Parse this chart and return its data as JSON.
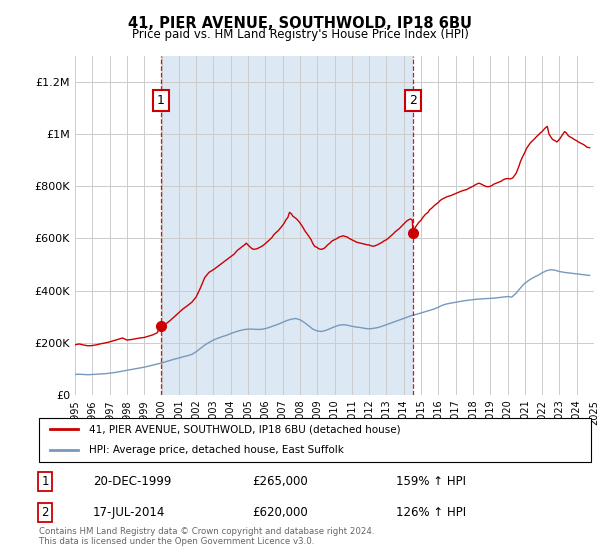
{
  "title": "41, PIER AVENUE, SOUTHWOLD, IP18 6BU",
  "subtitle": "Price paid vs. HM Land Registry's House Price Index (HPI)",
  "plot_bg_color": "#dce9f5",
  "red_line_color": "#cc0000",
  "blue_line_color": "#7799bb",
  "marker1_x": 1999.97,
  "marker1_y": 265000,
  "marker2_x": 2014.54,
  "marker2_y": 620000,
  "ylim": [
    0,
    1300000
  ],
  "yticks": [
    0,
    200000,
    400000,
    600000,
    800000,
    1000000,
    1200000
  ],
  "ytick_labels": [
    "£0",
    "£200K",
    "£400K",
    "£600K",
    "£800K",
    "£1M",
    "£1.2M"
  ],
  "xmin": 1995,
  "xmax": 2025,
  "legend_line1": "41, PIER AVENUE, SOUTHWOLD, IP18 6BU (detached house)",
  "legend_line2": "HPI: Average price, detached house, East Suffolk",
  "table_row1": [
    "1",
    "20-DEC-1999",
    "£265,000",
    "159% ↑ HPI"
  ],
  "table_row2": [
    "2",
    "17-JUL-2014",
    "£620,000",
    "126% ↑ HPI"
  ],
  "footer": "Contains HM Land Registry data © Crown copyright and database right 2024.\nThis data is licensed under the Open Government Licence v3.0.",
  "red_hpi_data": [
    [
      1995.0,
      192000
    ],
    [
      1995.25,
      195000
    ],
    [
      1995.5,
      191000
    ],
    [
      1995.75,
      188000
    ],
    [
      1996.0,
      189000
    ],
    [
      1996.25,
      192000
    ],
    [
      1996.5,
      196000
    ],
    [
      1996.75,
      199000
    ],
    [
      1997.0,
      203000
    ],
    [
      1997.25,
      208000
    ],
    [
      1997.5,
      213000
    ],
    [
      1997.75,
      218000
    ],
    [
      1998.0,
      210000
    ],
    [
      1998.25,
      212000
    ],
    [
      1998.5,
      215000
    ],
    [
      1998.75,
      218000
    ],
    [
      1999.0,
      220000
    ],
    [
      1999.25,
      225000
    ],
    [
      1999.5,
      230000
    ],
    [
      1999.75,
      238000
    ],
    [
      1999.97,
      265000
    ],
    [
      2000.1,
      268000
    ],
    [
      2000.25,
      272000
    ],
    [
      2000.5,
      285000
    ],
    [
      2000.75,
      300000
    ],
    [
      2001.0,
      315000
    ],
    [
      2001.25,
      330000
    ],
    [
      2001.5,
      342000
    ],
    [
      2001.75,
      355000
    ],
    [
      2002.0,
      375000
    ],
    [
      2002.25,
      410000
    ],
    [
      2002.5,
      450000
    ],
    [
      2002.75,
      470000
    ],
    [
      2003.0,
      480000
    ],
    [
      2003.1,
      485000
    ],
    [
      2003.25,
      492000
    ],
    [
      2003.35,
      498000
    ],
    [
      2003.5,
      505000
    ],
    [
      2003.6,
      510000
    ],
    [
      2003.75,
      518000
    ],
    [
      2003.85,
      523000
    ],
    [
      2004.0,
      530000
    ],
    [
      2004.1,
      535000
    ],
    [
      2004.2,
      540000
    ],
    [
      2004.3,
      548000
    ],
    [
      2004.4,
      555000
    ],
    [
      2004.5,
      560000
    ],
    [
      2004.6,
      565000
    ],
    [
      2004.75,
      572000
    ],
    [
      2004.85,
      578000
    ],
    [
      2004.9,
      582000
    ],
    [
      2005.0,
      575000
    ],
    [
      2005.15,
      565000
    ],
    [
      2005.3,
      558000
    ],
    [
      2005.5,
      560000
    ],
    [
      2005.6,
      563000
    ],
    [
      2005.75,
      568000
    ],
    [
      2005.85,
      572000
    ],
    [
      2006.0,
      580000
    ],
    [
      2006.1,
      586000
    ],
    [
      2006.25,
      595000
    ],
    [
      2006.4,
      605000
    ],
    [
      2006.5,
      615000
    ],
    [
      2006.65,
      624000
    ],
    [
      2006.75,
      630000
    ],
    [
      2006.85,
      638000
    ],
    [
      2007.0,
      650000
    ],
    [
      2007.1,
      660000
    ],
    [
      2007.2,
      672000
    ],
    [
      2007.3,
      680000
    ],
    [
      2007.4,
      700000
    ],
    [
      2007.5,
      695000
    ],
    [
      2007.6,
      685000
    ],
    [
      2007.75,
      678000
    ],
    [
      2007.85,
      672000
    ],
    [
      2008.0,
      660000
    ],
    [
      2008.15,
      645000
    ],
    [
      2008.3,
      628000
    ],
    [
      2008.5,
      610000
    ],
    [
      2008.65,
      595000
    ],
    [
      2008.75,
      580000
    ],
    [
      2008.85,
      570000
    ],
    [
      2009.0,
      565000
    ],
    [
      2009.1,
      560000
    ],
    [
      2009.25,
      558000
    ],
    [
      2009.4,
      562000
    ],
    [
      2009.5,
      568000
    ],
    [
      2009.6,
      575000
    ],
    [
      2009.75,
      583000
    ],
    [
      2009.85,
      590000
    ],
    [
      2010.0,
      595000
    ],
    [
      2010.15,
      600000
    ],
    [
      2010.25,
      605000
    ],
    [
      2010.4,
      608000
    ],
    [
      2010.5,
      610000
    ],
    [
      2010.6,
      608000
    ],
    [
      2010.75,
      605000
    ],
    [
      2010.85,
      600000
    ],
    [
      2011.0,
      595000
    ],
    [
      2011.15,
      590000
    ],
    [
      2011.3,
      585000
    ],
    [
      2011.5,
      582000
    ],
    [
      2011.65,
      580000
    ],
    [
      2011.75,
      578000
    ],
    [
      2011.85,
      576000
    ],
    [
      2012.0,
      575000
    ],
    [
      2012.1,
      572000
    ],
    [
      2012.25,
      570000
    ],
    [
      2012.35,
      572000
    ],
    [
      2012.5,
      576000
    ],
    [
      2012.6,
      580000
    ],
    [
      2012.75,
      585000
    ],
    [
      2012.85,
      590000
    ],
    [
      2013.0,
      595000
    ],
    [
      2013.1,
      600000
    ],
    [
      2013.2,
      606000
    ],
    [
      2013.3,
      612000
    ],
    [
      2013.4,
      618000
    ],
    [
      2013.5,
      625000
    ],
    [
      2013.6,
      630000
    ],
    [
      2013.75,
      638000
    ],
    [
      2013.85,
      645000
    ],
    [
      2014.0,
      655000
    ],
    [
      2014.1,
      662000
    ],
    [
      2014.2,
      668000
    ],
    [
      2014.3,
      672000
    ],
    [
      2014.4,
      675000
    ],
    [
      2014.5,
      670000
    ],
    [
      2014.54,
      620000
    ],
    [
      2014.6,
      635000
    ],
    [
      2014.75,
      650000
    ],
    [
      2014.85,
      660000
    ],
    [
      2015.0,
      670000
    ],
    [
      2015.1,
      680000
    ],
    [
      2015.25,
      692000
    ],
    [
      2015.4,
      700000
    ],
    [
      2015.5,
      710000
    ],
    [
      2015.65,
      718000
    ],
    [
      2015.75,
      725000
    ],
    [
      2015.85,
      730000
    ],
    [
      2016.0,
      738000
    ],
    [
      2016.1,
      745000
    ],
    [
      2016.2,
      750000
    ],
    [
      2016.35,
      755000
    ],
    [
      2016.5,
      760000
    ],
    [
      2016.6,
      762000
    ],
    [
      2016.75,
      765000
    ],
    [
      2016.85,
      768000
    ],
    [
      2017.0,
      772000
    ],
    [
      2017.1,
      775000
    ],
    [
      2017.2,
      778000
    ],
    [
      2017.35,
      782000
    ],
    [
      2017.5,
      785000
    ],
    [
      2017.65,
      788000
    ],
    [
      2017.75,
      792000
    ],
    [
      2017.85,
      795000
    ],
    [
      2018.0,
      800000
    ],
    [
      2018.1,
      804000
    ],
    [
      2018.2,
      808000
    ],
    [
      2018.35,
      812000
    ],
    [
      2018.5,
      808000
    ],
    [
      2018.6,
      804000
    ],
    [
      2018.75,
      800000
    ],
    [
      2018.85,
      798000
    ],
    [
      2019.0,
      800000
    ],
    [
      2019.1,
      803000
    ],
    [
      2019.2,
      808000
    ],
    [
      2019.35,
      812000
    ],
    [
      2019.5,
      816000
    ],
    [
      2019.65,
      820000
    ],
    [
      2019.75,
      825000
    ],
    [
      2019.85,
      828000
    ],
    [
      2020.0,
      830000
    ],
    [
      2020.15,
      828000
    ],
    [
      2020.3,
      832000
    ],
    [
      2020.5,
      850000
    ],
    [
      2020.65,
      875000
    ],
    [
      2020.75,
      895000
    ],
    [
      2020.85,
      910000
    ],
    [
      2021.0,
      930000
    ],
    [
      2021.1,
      945000
    ],
    [
      2021.2,
      955000
    ],
    [
      2021.3,
      965000
    ],
    [
      2021.4,
      972000
    ],
    [
      2021.5,
      978000
    ],
    [
      2021.6,
      985000
    ],
    [
      2021.7,
      992000
    ],
    [
      2021.8,
      998000
    ],
    [
      2021.9,
      1005000
    ],
    [
      2022.0,
      1010000
    ],
    [
      2022.1,
      1018000
    ],
    [
      2022.2,
      1025000
    ],
    [
      2022.3,
      1030000
    ],
    [
      2022.4,
      1000000
    ],
    [
      2022.5,
      990000
    ],
    [
      2022.6,
      980000
    ],
    [
      2022.75,
      975000
    ],
    [
      2022.85,
      970000
    ],
    [
      2023.0,
      980000
    ],
    [
      2023.1,
      990000
    ],
    [
      2023.2,
      1000000
    ],
    [
      2023.3,
      1010000
    ],
    [
      2023.4,
      1005000
    ],
    [
      2023.5,
      995000
    ],
    [
      2023.6,
      990000
    ],
    [
      2023.75,
      985000
    ],
    [
      2023.85,
      980000
    ],
    [
      2024.0,
      975000
    ],
    [
      2024.1,
      970000
    ],
    [
      2024.25,
      965000
    ],
    [
      2024.4,
      960000
    ],
    [
      2024.5,
      955000
    ],
    [
      2024.6,
      950000
    ],
    [
      2024.75,
      948000
    ]
  ],
  "blue_hpi_data": [
    [
      1995.0,
      78000
    ],
    [
      1995.25,
      79000
    ],
    [
      1995.5,
      78000
    ],
    [
      1995.75,
      77000
    ],
    [
      1996.0,
      78000
    ],
    [
      1996.25,
      79000
    ],
    [
      1996.5,
      80000
    ],
    [
      1996.75,
      81000
    ],
    [
      1997.0,
      83000
    ],
    [
      1997.25,
      85000
    ],
    [
      1997.5,
      88000
    ],
    [
      1997.75,
      91000
    ],
    [
      1998.0,
      94000
    ],
    [
      1998.25,
      97000
    ],
    [
      1998.5,
      100000
    ],
    [
      1998.75,
      103000
    ],
    [
      1999.0,
      106000
    ],
    [
      1999.25,
      110000
    ],
    [
      1999.5,
      114000
    ],
    [
      1999.75,
      118000
    ],
    [
      2000.0,
      122000
    ],
    [
      2000.25,
      127000
    ],
    [
      2000.5,
      132000
    ],
    [
      2000.75,
      137000
    ],
    [
      2001.0,
      141000
    ],
    [
      2001.25,
      146000
    ],
    [
      2001.5,
      150000
    ],
    [
      2001.75,
      155000
    ],
    [
      2002.0,
      165000
    ],
    [
      2002.25,
      178000
    ],
    [
      2002.5,
      191000
    ],
    [
      2002.75,
      201000
    ],
    [
      2003.0,
      210000
    ],
    [
      2003.25,
      217000
    ],
    [
      2003.5,
      223000
    ],
    [
      2003.75,
      228000
    ],
    [
      2004.0,
      235000
    ],
    [
      2004.25,
      241000
    ],
    [
      2004.5,
      246000
    ],
    [
      2004.75,
      250000
    ],
    [
      2005.0,
      252000
    ],
    [
      2005.25,
      252000
    ],
    [
      2005.5,
      251000
    ],
    [
      2005.75,
      251000
    ],
    [
      2006.0,
      254000
    ],
    [
      2006.25,
      259000
    ],
    [
      2006.5,
      265000
    ],
    [
      2006.75,
      271000
    ],
    [
      2007.0,
      278000
    ],
    [
      2007.25,
      285000
    ],
    [
      2007.5,
      290000
    ],
    [
      2007.75,
      293000
    ],
    [
      2008.0,
      288000
    ],
    [
      2008.25,
      278000
    ],
    [
      2008.5,
      265000
    ],
    [
      2008.75,
      252000
    ],
    [
      2009.0,
      245000
    ],
    [
      2009.25,
      243000
    ],
    [
      2009.5,
      247000
    ],
    [
      2009.75,
      254000
    ],
    [
      2010.0,
      261000
    ],
    [
      2010.25,
      267000
    ],
    [
      2010.5,
      269000
    ],
    [
      2010.75,
      267000
    ],
    [
      2011.0,
      263000
    ],
    [
      2011.25,
      260000
    ],
    [
      2011.5,
      258000
    ],
    [
      2011.75,
      255000
    ],
    [
      2012.0,
      253000
    ],
    [
      2012.25,
      255000
    ],
    [
      2012.5,
      258000
    ],
    [
      2012.75,
      263000
    ],
    [
      2013.0,
      269000
    ],
    [
      2013.25,
      275000
    ],
    [
      2013.5,
      281000
    ],
    [
      2013.75,
      287000
    ],
    [
      2014.0,
      293000
    ],
    [
      2014.25,
      299000
    ],
    [
      2014.5,
      305000
    ],
    [
      2014.75,
      309000
    ],
    [
      2015.0,
      314000
    ],
    [
      2015.25,
      319000
    ],
    [
      2015.5,
      324000
    ],
    [
      2015.75,
      329000
    ],
    [
      2016.0,
      336000
    ],
    [
      2016.25,
      344000
    ],
    [
      2016.5,
      349000
    ],
    [
      2016.75,
      352000
    ],
    [
      2017.0,
      355000
    ],
    [
      2017.25,
      358000
    ],
    [
      2017.5,
      361000
    ],
    [
      2017.75,
      363000
    ],
    [
      2018.0,
      365000
    ],
    [
      2018.25,
      367000
    ],
    [
      2018.5,
      368000
    ],
    [
      2018.75,
      369000
    ],
    [
      2019.0,
      370000
    ],
    [
      2019.25,
      371000
    ],
    [
      2019.5,
      373000
    ],
    [
      2019.75,
      375000
    ],
    [
      2020.0,
      377000
    ],
    [
      2020.25,
      375000
    ],
    [
      2020.5,
      390000
    ],
    [
      2020.75,
      410000
    ],
    [
      2021.0,
      428000
    ],
    [
      2021.25,
      440000
    ],
    [
      2021.5,
      450000
    ],
    [
      2021.75,
      458000
    ],
    [
      2022.0,
      468000
    ],
    [
      2022.25,
      476000
    ],
    [
      2022.5,
      480000
    ],
    [
      2022.75,
      478000
    ],
    [
      2023.0,
      473000
    ],
    [
      2023.25,
      470000
    ],
    [
      2023.5,
      468000
    ],
    [
      2023.75,
      466000
    ],
    [
      2024.0,
      464000
    ],
    [
      2024.25,
      462000
    ],
    [
      2024.5,
      460000
    ],
    [
      2024.75,
      458000
    ]
  ]
}
